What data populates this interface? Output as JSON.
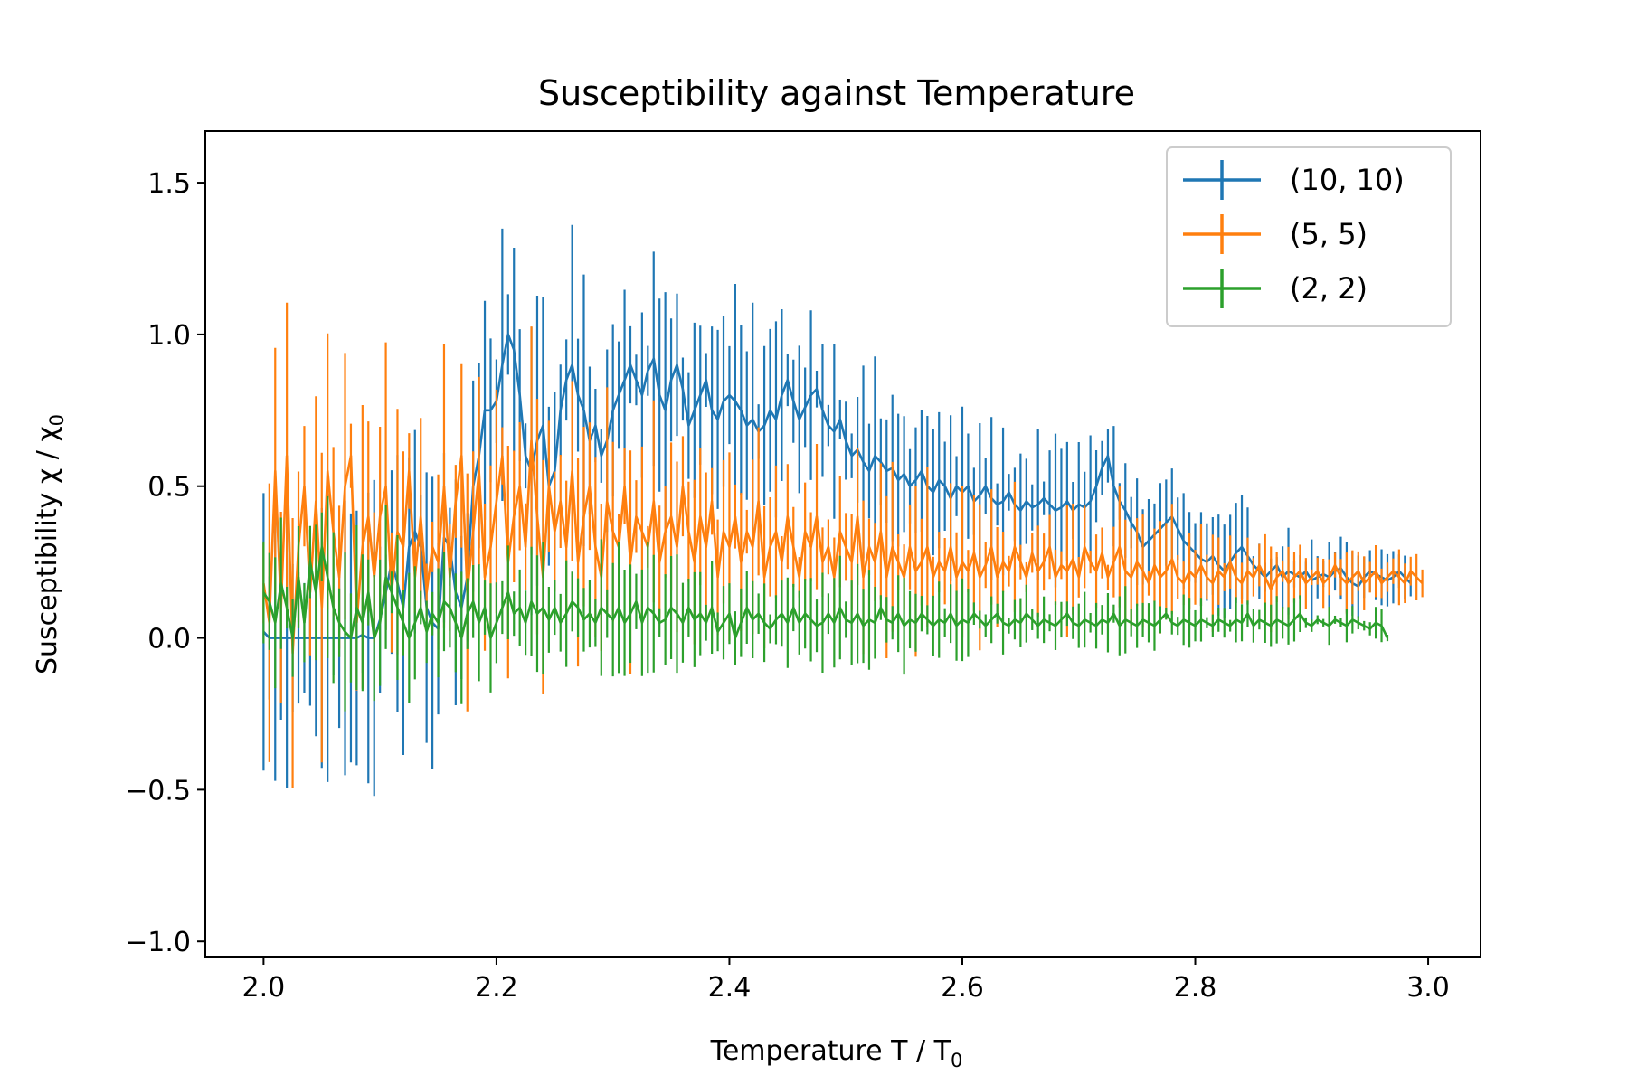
{
  "chart_data": {
    "type": "line",
    "title": "Susceptibility against Temperature",
    "xlabel": "Temperature T / T",
    "xlabel_sub": "0",
    "ylabel": "Susceptibility χ / χ",
    "ylabel_sub": "0",
    "xlim": [
      1.95,
      3.045
    ],
    "ylim": [
      -1.05,
      1.67
    ],
    "xticks": [
      2.0,
      2.2,
      2.4,
      2.6,
      2.8,
      3.0
    ],
    "xtick_labels": [
      "2.0",
      "2.2",
      "2.4",
      "2.6",
      "2.8",
      "3.0"
    ],
    "yticks": [
      -1.0,
      -0.5,
      0.0,
      0.5,
      1.0,
      1.5
    ],
    "ytick_labels": [
      "−1.0",
      "−0.5",
      "0.0",
      "0.5",
      "1.0",
      "1.5"
    ],
    "grid": false,
    "legend_position": "top-right",
    "x_start": 2.0,
    "x_step": 0.005,
    "series": [
      {
        "name": "(10, 10)",
        "color": "#1f77b4",
        "values": [
          0.02,
          0,
          0,
          0,
          0,
          0,
          0,
          0,
          0,
          0,
          0,
          0,
          0,
          0,
          0,
          0,
          0,
          0.01,
          0,
          0,
          0.06,
          0.15,
          0.25,
          0.18,
          0.1,
          0.3,
          0.35,
          0.3,
          0.1,
          0.05,
          0.03,
          0.33,
          0.3,
          0.15,
          0.1,
          0.2,
          0.5,
          0.6,
          0.75,
          0.75,
          0.78,
          0.9,
          1.0,
          0.95,
          0.8,
          0.6,
          0.55,
          0.65,
          0.7,
          0.5,
          0.55,
          0.75,
          0.85,
          0.9,
          0.8,
          0.75,
          0.65,
          0.7,
          0.6,
          0.65,
          0.75,
          0.8,
          0.85,
          0.9,
          0.85,
          0.8,
          0.88,
          0.92,
          0.8,
          0.75,
          0.85,
          0.9,
          0.82,
          0.7,
          0.75,
          0.8,
          0.85,
          0.75,
          0.72,
          0.78,
          0.8,
          0.78,
          0.75,
          0.7,
          0.72,
          0.68,
          0.7,
          0.75,
          0.72,
          0.8,
          0.85,
          0.78,
          0.72,
          0.76,
          0.8,
          0.82,
          0.75,
          0.7,
          0.68,
          0.72,
          0.65,
          0.6,
          0.62,
          0.58,
          0.55,
          0.6,
          0.58,
          0.55,
          0.56,
          0.52,
          0.54,
          0.5,
          0.52,
          0.55,
          0.5,
          0.48,
          0.52,
          0.5,
          0.46,
          0.5,
          0.48,
          0.5,
          0.45,
          0.47,
          0.5,
          0.46,
          0.44,
          0.45,
          0.48,
          0.44,
          0.42,
          0.45,
          0.43,
          0.44,
          0.46,
          0.44,
          0.42,
          0.43,
          0.45,
          0.42,
          0.44,
          0.43,
          0.45,
          0.5,
          0.56,
          0.6,
          0.5,
          0.45,
          0.42,
          0.38,
          0.35,
          0.3,
          0.32,
          0.34,
          0.36,
          0.38,
          0.4,
          0.36,
          0.32,
          0.3,
          0.28,
          0.26,
          0.25,
          0.27,
          0.24,
          0.22,
          0.25,
          0.28,
          0.3,
          0.27,
          0.24,
          0.22,
          0.2,
          0.22,
          0.24,
          0.2,
          0.22,
          0.21,
          0.2,
          0.22,
          0.19,
          0.2,
          0.21,
          0.2,
          0.22,
          0.23,
          0.2,
          0.18,
          0.17,
          0.2,
          0.22,
          0.21,
          0.2,
          0.19,
          0.2,
          0.22,
          0.2,
          0.18
        ]
      },
      {
        "name": "(5, 5)",
        "color": "#ff7f0e",
        "values": [
          0.18,
          0.05,
          0.55,
          0.1,
          0.6,
          -0.05,
          0.3,
          0.5,
          0.15,
          0.45,
          0.1,
          0.55,
          0.35,
          0.2,
          0.5,
          0.6,
          0.05,
          0.3,
          0.4,
          0.2,
          0.4,
          0.5,
          0.15,
          0.35,
          0.3,
          0.55,
          0.2,
          0.4,
          0.15,
          0.3,
          0.25,
          0.5,
          0.2,
          0.45,
          0.6,
          0.15,
          0.35,
          0.55,
          0.2,
          0.3,
          0.45,
          0.6,
          0.25,
          0.4,
          0.5,
          0.3,
          0.65,
          0.4,
          0.2,
          0.5,
          0.35,
          0.45,
          0.3,
          0.55,
          0.25,
          0.4,
          0.5,
          0.3,
          0.2,
          0.45,
          0.35,
          0.3,
          0.5,
          0.25,
          0.4,
          0.35,
          0.3,
          0.45,
          0.25,
          0.35,
          0.4,
          0.3,
          0.5,
          0.35,
          0.25,
          0.4,
          0.3,
          0.45,
          0.2,
          0.35,
          0.3,
          0.4,
          0.25,
          0.35,
          0.3,
          0.45,
          0.2,
          0.3,
          0.35,
          0.25,
          0.4,
          0.3,
          0.2,
          0.35,
          0.3,
          0.4,
          0.25,
          0.3,
          0.2,
          0.35,
          0.3,
          0.25,
          0.4,
          0.2,
          0.3,
          0.25,
          0.35,
          0.2,
          0.3,
          0.25,
          0.2,
          0.3,
          0.22,
          0.25,
          0.3,
          0.2,
          0.25,
          0.22,
          0.3,
          0.2,
          0.25,
          0.22,
          0.28,
          0.2,
          0.24,
          0.3,
          0.2,
          0.25,
          0.22,
          0.3,
          0.25,
          0.2,
          0.28,
          0.22,
          0.25,
          0.3,
          0.2,
          0.24,
          0.22,
          0.26,
          0.2,
          0.3,
          0.25,
          0.22,
          0.28,
          0.2,
          0.25,
          0.3,
          0.22,
          0.2,
          0.25,
          0.22,
          0.18,
          0.24,
          0.2,
          0.22,
          0.26,
          0.2,
          0.18,
          0.22,
          0.2,
          0.24,
          0.2,
          0.18,
          0.22,
          0.2,
          0.25,
          0.2,
          0.18,
          0.22,
          0.2,
          0.24,
          0.2,
          0.16,
          0.2,
          0.22,
          0.18,
          0.2,
          0.22,
          0.18,
          0.2,
          0.22,
          0.18,
          0.2,
          0.24,
          0.2,
          0.18,
          0.2,
          0.22,
          0.18,
          0.2,
          0.22,
          0.18,
          0.2,
          0.22,
          0.2,
          0.18,
          0.22,
          0.2,
          0.18
        ]
      },
      {
        "name": "(2, 2)",
        "color": "#2ca02c",
        "values": [
          0.15,
          0.12,
          0.05,
          0.18,
          0.1,
          0.0,
          0.2,
          0.05,
          0.25,
          0.15,
          0.3,
          0.2,
          0.1,
          0.05,
          0.02,
          0.0,
          0.1,
          0.05,
          0.15,
          0.0,
          0.05,
          0.2,
          0.15,
          0.1,
          0.05,
          0.0,
          0.05,
          0.1,
          0.02,
          0.08,
          0.05,
          0.12,
          0.1,
          0.05,
          0.0,
          0.08,
          0.12,
          0.05,
          0.1,
          0.0,
          0.05,
          0.1,
          0.15,
          0.08,
          0.1,
          0.05,
          0.12,
          0.08,
          0.1,
          0.06,
          0.1,
          0.05,
          0.08,
          0.12,
          0.1,
          0.06,
          0.08,
          0.05,
          0.1,
          0.08,
          0.06,
          0.1,
          0.05,
          0.08,
          0.12,
          0.05,
          0.1,
          0.08,
          0.05,
          0.06,
          0.1,
          0.08,
          0.05,
          0.1,
          0.06,
          0.08,
          0.05,
          0.1,
          0.02,
          0.05,
          0.08,
          0.0,
          0.05,
          0.1,
          0.06,
          0.08,
          0.05,
          0.03,
          0.06,
          0.08,
          0.05,
          0.1,
          0.05,
          0.08,
          0.06,
          0.04,
          0.05,
          0.08,
          0.05,
          0.1,
          0.06,
          0.05,
          0.08,
          0.04,
          0.06,
          0.05,
          0.1,
          0.06,
          0.05,
          0.08,
          0.04,
          0.06,
          0.05,
          0.08,
          0.06,
          0.04,
          0.06,
          0.05,
          0.08,
          0.04,
          0.06,
          0.05,
          0.08,
          0.06,
          0.04,
          0.06,
          0.08,
          0.05,
          0.04,
          0.06,
          0.05,
          0.08,
          0.06,
          0.04,
          0.06,
          0.05,
          0.04,
          0.06,
          0.08,
          0.05,
          0.04,
          0.06,
          0.05,
          0.04,
          0.06,
          0.05,
          0.08,
          0.04,
          0.06,
          0.05,
          0.04,
          0.06,
          0.05,
          0.04,
          0.06,
          0.08,
          0.05,
          0.04,
          0.06,
          0.05,
          0.04,
          0.06,
          0.05,
          0.04,
          0.06,
          0.05,
          0.04,
          0.06,
          0.05,
          0.08,
          0.04,
          0.06,
          0.05,
          0.04,
          0.06,
          0.05,
          0.04,
          0.06,
          0.08,
          0.05,
          0.04,
          0.06,
          0.05,
          0.04,
          0.06,
          0.05,
          0.04,
          0.06,
          0.05,
          0.04,
          0.03,
          0.05,
          0.04,
          0.0
        ]
      }
    ]
  }
}
